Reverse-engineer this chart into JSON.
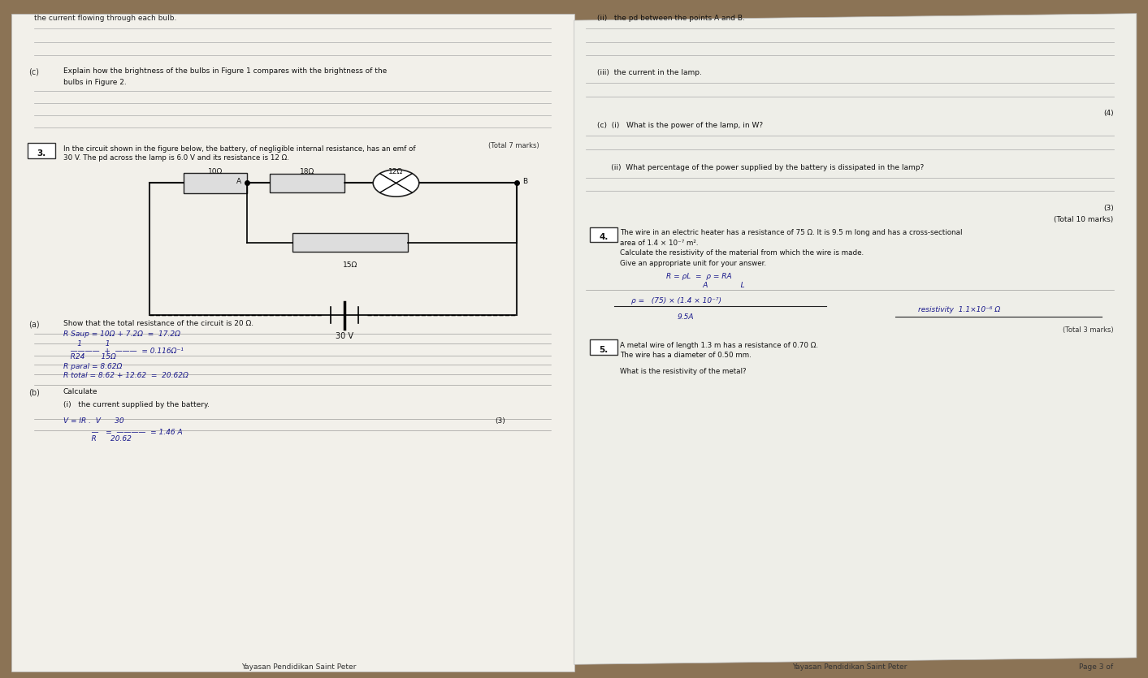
{
  "bg_color": "#8B7355",
  "left_paper_color": "#F2F0EA",
  "right_paper_color": "#EEEEE8",
  "left_content": {
    "top_text": "the current flowing through each bulb.",
    "c_label": "(c)",
    "c_text1": "Explain how the brightness of the bulbs in Figure 1 compares with the brightness of the",
    "c_text2": "bulbs in Figure 2.",
    "total7": "(Total 7 marks)",
    "q3_label": "3.",
    "q3_text1": "In the circuit shown in the figure below, the battery, of negligible internal resistance, has an emf of",
    "q3_text2": "30 V. The pd across the lamp is 6.0 V and its resistance is 12 Ω.",
    "qa_label": "(a)",
    "qa_text": "Show that the total resistance of the circuit is 20 Ω.",
    "hw_a1": "R Saup = 10Ω + 7.2Ω  =  17.2Ω",
    "hw_a2": "      1          1",
    "hw_a3": "   ————  +  ———  = 0.116Ω⁻¹",
    "hw_a4": "   R24       15Ω",
    "hw_a5": "R paral = 8.62Ω",
    "hw_a6": "R total = 8.62 + 12.62  =  20.62Ω",
    "qb_label": "(b)",
    "qb_text": "Calculate",
    "qi_text": "(i)   the current supplied by the battery.",
    "marks3": "(3)",
    "hw_b1": "V = IR .  V      30",
    "hw_b2": "            —   =  ————  = 1.46 A",
    "hw_b3": "            R      20.62",
    "footer": "Yayasan Pendidikan Saint Peter"
  },
  "right_content": {
    "ii_text": "(ii)   the pd between the points A and B.",
    "iii_text": "(iii)  the current in the lamp.",
    "marks4": "(4)",
    "ci_text": "(c)  (i)   What is the power of the lamp, in W?",
    "cii_text": "      (ii)  What percentage of the power supplied by the battery is dissipated in the lamp?",
    "marks3": "(3)",
    "total10": "(Total 10 marks)",
    "q4_label": "4.",
    "q4_text1": "The wire in an electric heater has a resistance of 75 Ω. It is 9.5 m long and has a cross-sectional",
    "q4_text2": "area of 1.4 × 10⁻⁷ m².",
    "q4_text3": "Calculate the resistivity of the material from which the wire is made.",
    "q4_text4": "Give an appropriate unit for your answer.",
    "hw_41": "R = ρL  =  ρ = RA",
    "hw_42": "      A              L",
    "hw_43": "ρ =   (75) × (1.4 × 10⁻⁷)",
    "hw_44": "9.5A",
    "resistivity": "resistivity  1.1×10⁻⁶ Ω",
    "total3": "(Total 3 marks)",
    "q5_label": "5.",
    "q5_text1": "A metal wire of length 1.3 m has a resistance of 0.70 Ω.",
    "q5_text2": "The wire has a diameter of 0.50 mm.",
    "q5_text3": "What is the resistivity of the metal?",
    "footer": "Yayasan Pendidikan Saint Peter",
    "page": "Page 3 of"
  },
  "circuit": {
    "r10": "10Ω",
    "r18": "18Ω",
    "r12": "12Ω",
    "r15": "15Ω",
    "batt": "30 V",
    "ptA": "A",
    "ptB": "B"
  }
}
